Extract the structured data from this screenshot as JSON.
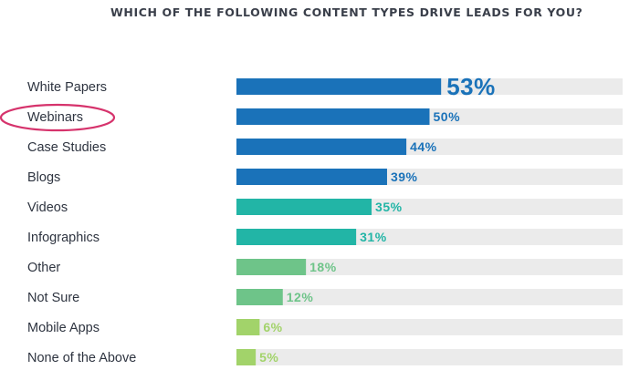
{
  "chart_data": {
    "type": "bar",
    "orientation": "horizontal",
    "title": "WHICH OF THE FOLLOWING CONTENT TYPES DRIVE LEADS FOR YOU?",
    "categories": [
      "White Papers",
      "Webinars",
      "Case Studies",
      "Blogs",
      "Videos",
      "Infographics",
      "Other",
      "Not Sure",
      "Mobile Apps",
      "None of the Above"
    ],
    "values": [
      53,
      50,
      44,
      39,
      35,
      31,
      18,
      12,
      6,
      5
    ],
    "value_labels": [
      "53%",
      "50%",
      "44%",
      "39%",
      "35%",
      "31%",
      "18%",
      "12%",
      "6%",
      "5%"
    ],
    "xlim": [
      0,
      100
    ],
    "xlabel": "",
    "ylabel": "",
    "grid": false,
    "colors": [
      "#1a72b9",
      "#1a72b9",
      "#1a72b9",
      "#1a72b9",
      "#22b5a6",
      "#22b5a6",
      "#6ec489",
      "#6ec489",
      "#a2d36a",
      "#a2d36a"
    ],
    "track_color": "#ebebeb",
    "highlighted_category": "Webinars",
    "highlight_color": "#d6336c"
  }
}
